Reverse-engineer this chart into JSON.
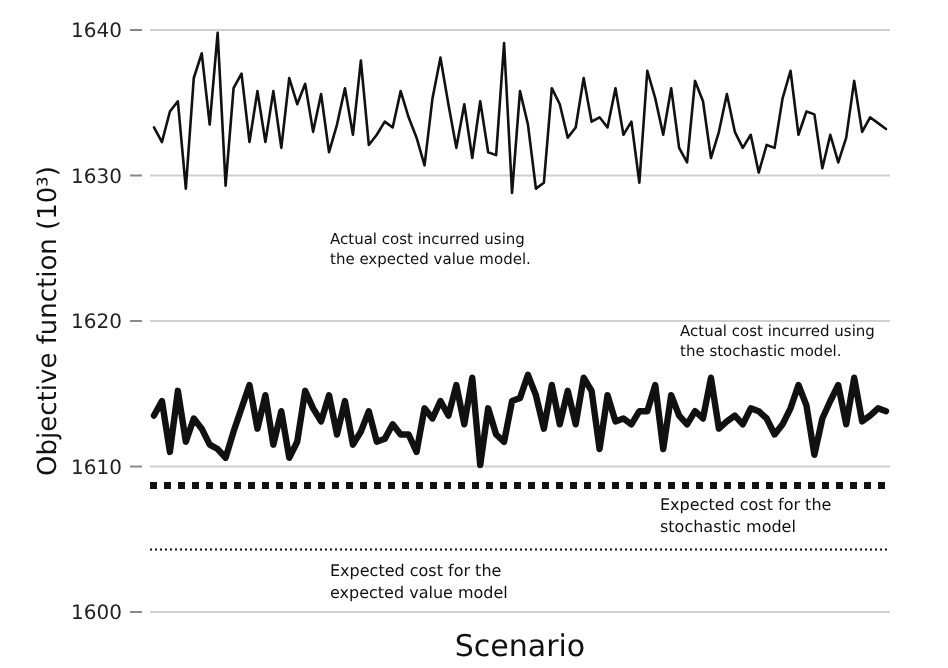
{
  "chart_data": {
    "type": "line",
    "xlabel": "Scenario",
    "ylabel": "Objective function (10³)",
    "ylim": [
      1600,
      1640
    ],
    "yticks": [
      1600,
      1610,
      1620,
      1630,
      1640
    ],
    "grid": "y",
    "tick_labels": "y",
    "marker": "none",
    "line_style": "solid",
    "categories": [
      null,
      null,
      null,
      null,
      null,
      null,
      null,
      null,
      null,
      null,
      null,
      null,
      null,
      null,
      null,
      null,
      null,
      null,
      null,
      null,
      null,
      null,
      null,
      null,
      null,
      null,
      null,
      null,
      null,
      null,
      null,
      null,
      null,
      null,
      null,
      null,
      null,
      null,
      null,
      null,
      null,
      null,
      null,
      null,
      null,
      null,
      null,
      null,
      null,
      null,
      null,
      null,
      null,
      null,
      null,
      null,
      null,
      null,
      null,
      null,
      null,
      null,
      null,
      null,
      null,
      null,
      null,
      null,
      null,
      null,
      null,
      null,
      null,
      null,
      null,
      null,
      null,
      null,
      null,
      null,
      null,
      null,
      null,
      null,
      null,
      null,
      null,
      null,
      null,
      null,
      null,
      null,
      null
    ],
    "series": [
      {
        "color": "#111111",
        "values": [
          1633.3,
          1632.3,
          1634.4,
          1635.1,
          1629.1,
          1636.7,
          1638.4,
          1633.5,
          1639.8,
          1629.3,
          1636.0,
          1637.0,
          1632.3,
          1635.8,
          1632.3,
          1635.8,
          1631.9,
          1636.7,
          1634.9,
          1636.3,
          1633.0,
          1635.6,
          1631.6,
          1633.5,
          1636.0,
          1632.8,
          1637.9,
          1632.1,
          1632.8,
          1633.7,
          1633.3,
          1635.8,
          1634.0,
          1632.6,
          1630.7,
          1635.3,
          1638.1,
          1634.9,
          1631.9,
          1634.9,
          1631.2,
          1635.1,
          1631.6,
          1631.4,
          1639.1,
          1628.8,
          1635.8,
          1633.5,
          1629.1,
          1629.5,
          1636.0,
          1634.9,
          1632.6,
          1633.3,
          1636.7,
          1633.7,
          1634.0,
          1633.3,
          1636.0,
          1632.8,
          1633.7,
          1629.5,
          1637.2,
          1635.3,
          1632.8,
          1636.0,
          1631.9,
          1630.9,
          1636.5,
          1635.1,
          1631.2,
          1633.0,
          1635.6,
          1633.0,
          1631.9,
          1632.8,
          1630.2,
          1632.1,
          1631.9,
          1635.3,
          1637.2,
          1632.8,
          1634.4,
          1634.2,
          1630.5,
          1632.8,
          1630.9,
          1632.6,
          1636.5,
          1633.0,
          1634.0,
          1633.6,
          1633.2
        ]
      },
      {
        "color": "#111111",
        "values": [
          1613.5,
          1614.5,
          1611.0,
          1615.2,
          1611.7,
          1613.3,
          1612.6,
          1611.5,
          1611.2,
          1610.6,
          1612.4,
          1614.0,
          1615.6,
          1612.6,
          1614.9,
          1611.5,
          1613.8,
          1610.6,
          1611.7,
          1615.2,
          1614.0,
          1613.1,
          1614.9,
          1612.2,
          1614.5,
          1611.5,
          1612.4,
          1613.8,
          1611.7,
          1611.9,
          1612.9,
          1612.2,
          1612.2,
          1611.0,
          1614.0,
          1613.3,
          1614.5,
          1613.5,
          1615.6,
          1612.9,
          1616.1,
          1610.1,
          1614.0,
          1612.2,
          1611.7,
          1614.5,
          1614.7,
          1616.3,
          1614.9,
          1612.6,
          1615.6,
          1612.9,
          1615.2,
          1612.9,
          1616.1,
          1615.2,
          1611.2,
          1614.9,
          1613.1,
          1613.3,
          1612.9,
          1613.8,
          1613.8,
          1615.6,
          1611.2,
          1614.9,
          1613.5,
          1612.9,
          1613.8,
          1613.3,
          1616.1,
          1612.6,
          1613.1,
          1613.5,
          1612.9,
          1614.0,
          1613.8,
          1613.3,
          1612.2,
          1612.9,
          1614.0,
          1615.6,
          1614.2,
          1610.8,
          1613.3,
          1614.5,
          1615.6,
          1612.9,
          1616.1,
          1613.1,
          1613.5,
          1614.0,
          1613.8
        ]
      }
    ],
    "ref_lines": [
      {
        "axis": "y",
        "value": 1608.7,
        "label": "Expected cost for the\nstochastic model",
        "color": "#111111",
        "line_style": "dashed"
      },
      {
        "axis": "y",
        "value": 1604.3,
        "label": "Expected cost for the\nexpected value model",
        "color": "#111111",
        "line_style": "dotted"
      }
    ],
    "annotations": [
      "Actual cost incurred using\nthe expected value model.",
      "Actual cost incurred using\nthe stochastic model."
    ]
  }
}
